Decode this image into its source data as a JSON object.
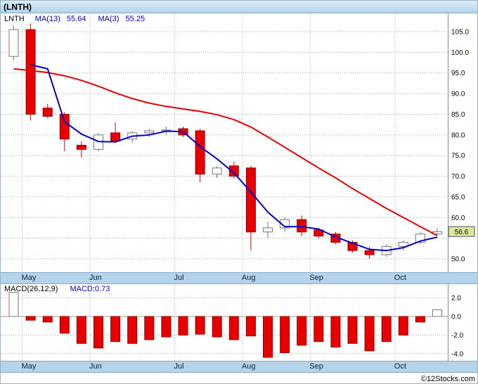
{
  "header": {
    "title": "(LNTH)"
  },
  "main_legend": {
    "symbol": "LNTH",
    "ma13_label": "MA(13)",
    "ma13_value": "55.64",
    "ma3_label": "MA(3)",
    "ma3_value": "55.25"
  },
  "macd_legend": {
    "label": "MACD(26,12,9)",
    "value": "MACD:0.73"
  },
  "footer": {
    "credit": "©12Stocks.com"
  },
  "colors": {
    "down": "#e60000",
    "down_border": "#990000",
    "up_fill": "#ffffff",
    "up_border": "#777777",
    "ma13": "#e80000",
    "ma3": "#0000cc",
    "grid": "#aaaaaa",
    "axis_line": "#888888",
    "axis_text": "#000000",
    "badge_bg": "#dce89c",
    "badge_border": "#555555",
    "zero_line": "#999999"
  },
  "chart_data": [
    {
      "type": "candlestick",
      "title": "(LNTH)",
      "symbol": "LNTH",
      "timeframe": "weekly",
      "legend": [
        "LNTH",
        "MA(13) 55.64",
        "MA(3) 55.25"
      ],
      "months": [
        {
          "label": "May",
          "index": 1
        },
        {
          "label": "Jun",
          "index": 5
        },
        {
          "label": "Jul",
          "index": 10
        },
        {
          "label": "Aug",
          "index": 14
        },
        {
          "label": "Sep",
          "index": 18
        },
        {
          "label": "Oct",
          "index": 23
        }
      ],
      "y_axis": {
        "range": [
          47,
          108
        ],
        "ticks": [
          105,
          100,
          95,
          90,
          85,
          80,
          75,
          70,
          65,
          60,
          55,
          50
        ],
        "labels": [
          {
            "value": 105,
            "text": "105.0"
          },
          {
            "value": 100,
            "text": "100.0"
          },
          {
            "value": 95,
            "text": "95.0"
          },
          {
            "value": 90,
            "text": "90.0"
          },
          {
            "value": 85,
            "text": "85.0"
          },
          {
            "value": 80,
            "text": "80.0"
          },
          {
            "value": 75,
            "text": "75.0"
          },
          {
            "value": 70,
            "text": "70.0"
          },
          {
            "value": 65,
            "text": "65.0"
          },
          {
            "value": 60,
            "text": "60.0"
          },
          {
            "value": 50,
            "text": "50.0"
          }
        ]
      },
      "last_price": 56.6,
      "last_price_label": "56.6",
      "candles": [
        {
          "o": 99,
          "h": 106.5,
          "l": 98,
          "c": 105.5
        },
        {
          "o": 105.5,
          "h": 107,
          "l": 83.5,
          "c": 85
        },
        {
          "o": 86.5,
          "h": 87.5,
          "l": 84,
          "c": 84.5
        },
        {
          "o": 85,
          "h": 85.5,
          "l": 76,
          "c": 79
        },
        {
          "o": 77.5,
          "h": 78.5,
          "l": 74.5,
          "c": 76.5
        },
        {
          "o": 76.5,
          "h": 80.5,
          "l": 76,
          "c": 80
        },
        {
          "o": 80.5,
          "h": 83,
          "l": 78,
          "c": 78.5
        },
        {
          "o": 79,
          "h": 81,
          "l": 78,
          "c": 80.5
        },
        {
          "o": 80.5,
          "h": 81.5,
          "l": 79.5,
          "c": 81
        },
        {
          "o": 81,
          "h": 82,
          "l": 80,
          "c": 81.2
        },
        {
          "o": 81.5,
          "h": 82,
          "l": 79.5,
          "c": 80
        },
        {
          "o": 81,
          "h": 81.5,
          "l": 68.5,
          "c": 70.5
        },
        {
          "o": 70.5,
          "h": 72.5,
          "l": 69.5,
          "c": 72
        },
        {
          "o": 72.5,
          "h": 73.5,
          "l": 69.5,
          "c": 70
        },
        {
          "o": 72,
          "h": 72.5,
          "l": 52,
          "c": 56.5
        },
        {
          "o": 56.5,
          "h": 59,
          "l": 55,
          "c": 57.5
        },
        {
          "o": 57.5,
          "h": 60,
          "l": 56.5,
          "c": 59.5
        },
        {
          "o": 59.5,
          "h": 60.5,
          "l": 55.5,
          "c": 56.5
        },
        {
          "o": 57,
          "h": 57.5,
          "l": 55,
          "c": 55.5
        },
        {
          "o": 56,
          "h": 56.5,
          "l": 53.5,
          "c": 54
        },
        {
          "o": 54,
          "h": 54.5,
          "l": 51.5,
          "c": 52
        },
        {
          "o": 52,
          "h": 53,
          "l": 50,
          "c": 51
        },
        {
          "o": 51,
          "h": 53.5,
          "l": 50.5,
          "c": 53
        },
        {
          "o": 53,
          "h": 54.5,
          "l": 52,
          "c": 54
        },
        {
          "o": 54,
          "h": 56.5,
          "l": 53.5,
          "c": 56
        },
        {
          "o": 56,
          "h": 57.5,
          "l": 55.5,
          "c": 56.6
        }
      ],
      "ma13": [
        96,
        95.6,
        95.1,
        94.3,
        93.2,
        91.8,
        90.2,
        88.8,
        87.7,
        86.9,
        86.3,
        85.7,
        84.9,
        83.7,
        81.9,
        79.5,
        77,
        74.5,
        72,
        69.6,
        67,
        64.6,
        62.2,
        60,
        57.8,
        55.64
      ],
      "ma3": [
        null,
        97,
        96,
        83.2,
        80.2,
        78.4,
        78.3,
        79.7,
        80,
        80.9,
        80.8,
        77.2,
        74.2,
        70.8,
        66.2,
        61.3,
        57.8,
        57.8,
        57.2,
        55.3,
        53.8,
        52.3,
        52,
        52.7,
        54.3,
        55.25
      ]
    },
    {
      "type": "bar",
      "name": "MACD(26,12,9)",
      "current": 0.73,
      "values": [
        2.6,
        -0.4,
        -0.6,
        -1.8,
        -2.9,
        -3.4,
        -2.7,
        -2.9,
        -2.5,
        -2.2,
        -2.0,
        -1.9,
        -2.2,
        -2.5,
        -2.1,
        -4.4,
        -3.9,
        -3.1,
        -2.7,
        -3.3,
        -2.9,
        -3.7,
        -2.7,
        -2.0,
        -0.6,
        0.73
      ],
      "y_axis": {
        "range": [
          -4.8,
          3.2
        ],
        "ticks": [
          2,
          0,
          -2,
          -4
        ],
        "labels": [
          {
            "value": 2,
            "text": "2.0"
          },
          {
            "value": 0,
            "text": "0.0"
          },
          {
            "value": -2,
            "text": "-2.0"
          },
          {
            "value": -4,
            "text": "-4.0"
          }
        ]
      }
    }
  ]
}
